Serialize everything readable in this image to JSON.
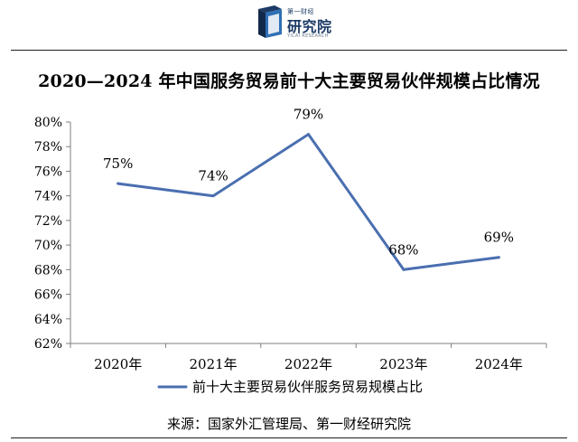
{
  "header": {
    "logo_brand": "第一财经",
    "logo_name": "研究院",
    "logo_en": "YICAI RESEARCH"
  },
  "chart_data": {
    "type": "line",
    "title": "2020—2024 年中国服务贸易前十大主要贸易伙伴规模占比情况",
    "categories": [
      "2020年",
      "2021年",
      "2022年",
      "2023年",
      "2024年"
    ],
    "series": [
      {
        "name": "前十大主要贸易伙伴服务贸易规模占比",
        "values": [
          75,
          74,
          79,
          68,
          69
        ],
        "labels": [
          "75%",
          "74%",
          "79%",
          "68%",
          "69%"
        ],
        "color": "#4a6fb0"
      }
    ],
    "y_ticks": [
      "62%",
      "64%",
      "66%",
      "68%",
      "70%",
      "72%",
      "74%",
      "76%",
      "78%",
      "80%"
    ],
    "ylim": [
      62,
      80
    ],
    "grid": false,
    "legend_position": "bottom"
  },
  "footer": {
    "source": "来源：国家外汇管理局、第一财经研究院"
  }
}
